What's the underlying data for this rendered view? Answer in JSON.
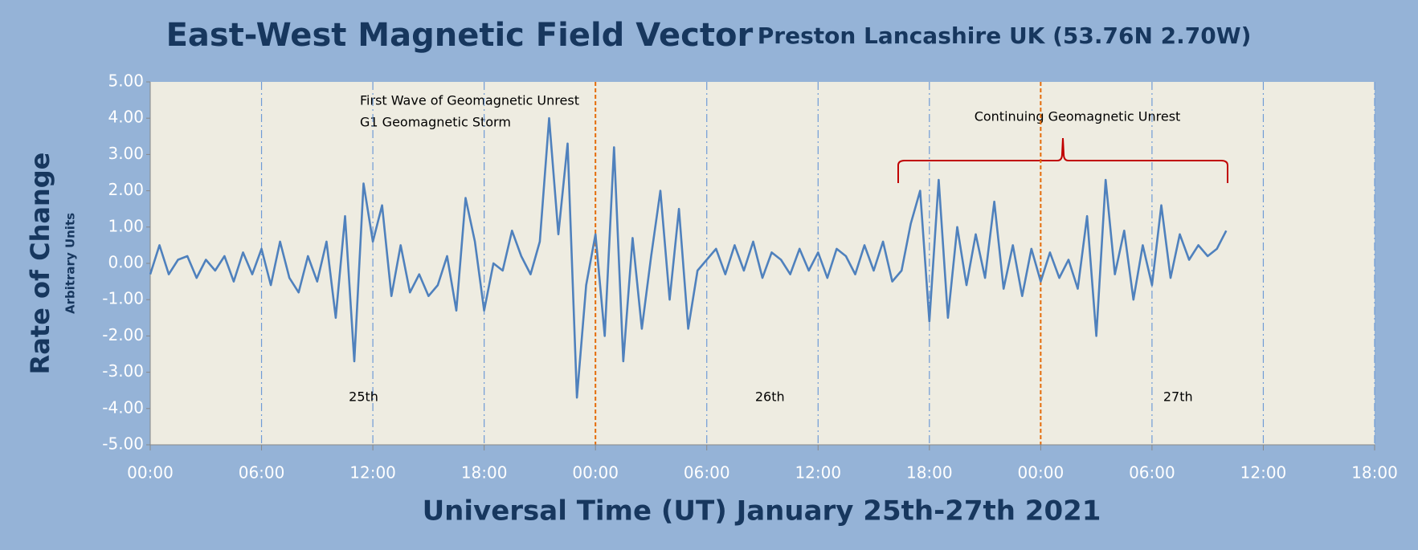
{
  "chart_data": {
    "type": "line",
    "title": "East-West Magnetic Field Vector",
    "subtitle": "Preston Lancashire UK (53.76N 2.70W)",
    "y_label": "Rate of Change",
    "y_sublabel": "Arbitrary Units",
    "x_label": "Universal Time (UT) January 25th-27th 2021",
    "annotations": [
      "First Wave of Geomagnetic Unrest",
      "G1 Geomagnetic Storm",
      "Continuing Geomagnetic Unrest"
    ],
    "day_labels": [
      "25th",
      "26th",
      "27th"
    ],
    "xlim": [
      0,
      66
    ],
    "xticks": [
      {
        "value": 0,
        "label": "00:00"
      },
      {
        "value": 6,
        "label": "06:00"
      },
      {
        "value": 12,
        "label": "12:00"
      },
      {
        "value": 18,
        "label": "18:00"
      },
      {
        "value": 24,
        "label": "00:00"
      },
      {
        "value": 30,
        "label": "06:00"
      },
      {
        "value": 36,
        "label": "12:00"
      },
      {
        "value": 42,
        "label": "18:00"
      },
      {
        "value": 48,
        "label": "00:00"
      },
      {
        "value": 54,
        "label": "06:00"
      },
      {
        "value": 60,
        "label": "12:00"
      },
      {
        "value": 66,
        "label": "18:00"
      }
    ],
    "ylim": [
      -5,
      5
    ],
    "yticks": [
      {
        "value": 5,
        "label": "5.00"
      },
      {
        "value": 4,
        "label": "4.00"
      },
      {
        "value": 3,
        "label": "3.00"
      },
      {
        "value": 2,
        "label": "2.00"
      },
      {
        "value": 1,
        "label": "1.00"
      },
      {
        "value": 0,
        "label": "0.00"
      },
      {
        "value": -1,
        "label": "-1.00"
      },
      {
        "value": -2,
        "label": "-2.00"
      },
      {
        "value": -3,
        "label": "-3.00"
      },
      {
        "value": -4,
        "label": "-4.00"
      },
      {
        "value": -5,
        "label": "-5.00"
      }
    ],
    "grid": true,
    "x": [
      0,
      0.5,
      1,
      1.5,
      2,
      2.5,
      3,
      3.5,
      4,
      4.5,
      5,
      5.5,
      6,
      6.5,
      7,
      7.5,
      8,
      8.5,
      9,
      9.5,
      10,
      10.5,
      11,
      11.5,
      12,
      12.5,
      13,
      13.5,
      14,
      14.5,
      15,
      15.5,
      16,
      16.5,
      17,
      17.5,
      18,
      18.5,
      19,
      19.5,
      20,
      20.5,
      21,
      21.5,
      22,
      22.5,
      23,
      23.5,
      24,
      24.5,
      25,
      25.5,
      26,
      26.5,
      27,
      27.5,
      28,
      28.5,
      29,
      29.5,
      30,
      30.5,
      31,
      31.5,
      32,
      32.5,
      33,
      33.5,
      34,
      34.5,
      35,
      35.5,
      36,
      36.5,
      37,
      37.5,
      38,
      38.5,
      39,
      39.5,
      40,
      40.5,
      41,
      41.5,
      42,
      42.5,
      43,
      43.5,
      44,
      44.5,
      45,
      45.5,
      46,
      46.5,
      47,
      47.5,
      48,
      48.5,
      49,
      49.5,
      50,
      50.5,
      51,
      51.5,
      52,
      52.5,
      53,
      53.5,
      54,
      54.5,
      55,
      55.5,
      56,
      56.5,
      57,
      57.5,
      58
    ],
    "series": [
      {
        "color": "#4f81bd",
        "values": [
          -0.3,
          0.5,
          -0.3,
          0.1,
          0.2,
          -0.4,
          0.1,
          -0.2,
          0.2,
          -0.5,
          0.3,
          -0.3,
          0.4,
          -0.6,
          0.6,
          -0.4,
          -0.8,
          0.2,
          -0.5,
          0.6,
          -1.5,
          1.3,
          -2.7,
          2.2,
          0.6,
          1.6,
          -0.9,
          0.5,
          -0.8,
          -0.3,
          -0.9,
          -0.6,
          0.2,
          -1.3,
          1.8,
          0.6,
          -1.3,
          0.0,
          -0.2,
          0.9,
          0.2,
          -0.3,
          0.6,
          4.0,
          0.8,
          3.3,
          -3.7,
          -0.6,
          0.8,
          -2.0,
          3.2,
          -2.7,
          0.7,
          -1.8,
          0.2,
          2.0,
          -1.0,
          1.5,
          -1.8,
          -0.2,
          0.1,
          0.4,
          -0.3,
          0.5,
          -0.2,
          0.6,
          -0.4,
          0.3,
          0.1,
          -0.3,
          0.4,
          -0.2,
          0.3,
          -0.4,
          0.4,
          0.2,
          -0.3,
          0.5,
          -0.2,
          0.6,
          -0.5,
          -0.2,
          1.1,
          2.0,
          -1.6,
          2.3,
          -1.5,
          1.0,
          -0.6,
          0.8,
          -0.4,
          1.7,
          -0.7,
          0.5,
          -0.9,
          0.4,
          -0.5,
          0.3,
          -0.4,
          0.1,
          -0.7,
          1.3,
          -2.0,
          2.3,
          -0.3,
          0.9,
          -1.0,
          0.5,
          -0.6,
          1.6,
          -0.4,
          0.8,
          0.1,
          0.5,
          0.2,
          0.4,
          0.9
        ]
      }
    ]
  }
}
